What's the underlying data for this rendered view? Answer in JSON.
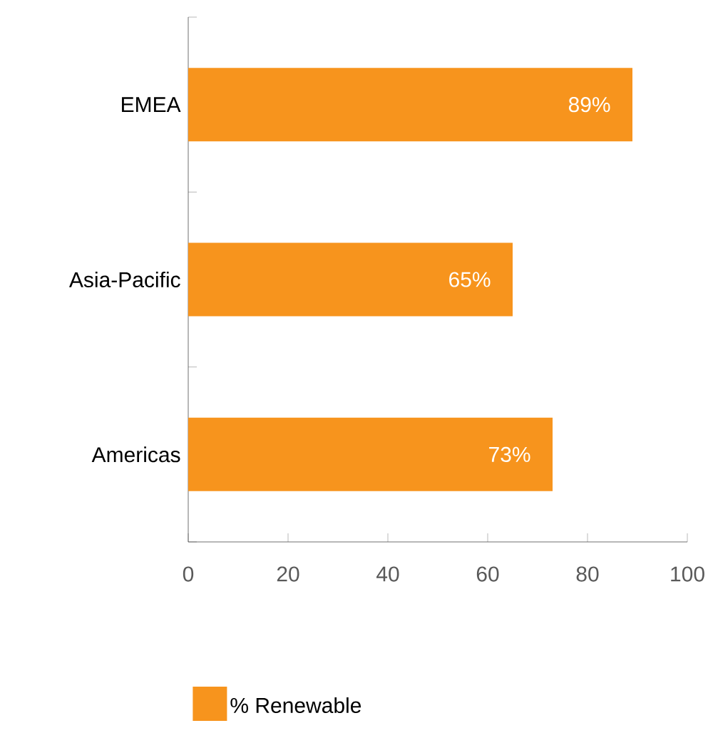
{
  "chart_data": {
    "type": "bar",
    "orientation": "horizontal",
    "categories": [
      "EMEA",
      "Asia-Pacific",
      "Americas"
    ],
    "series": [
      {
        "name": "% Renewable",
        "color": "#f7941d",
        "values": [
          89,
          65,
          73
        ],
        "value_labels": [
          "89%",
          "65%",
          "73%"
        ]
      }
    ],
    "xlim": [
      0,
      100
    ],
    "xticks": [
      0,
      20,
      40,
      60,
      80,
      100
    ],
    "grid": false,
    "legend": "bottom"
  }
}
